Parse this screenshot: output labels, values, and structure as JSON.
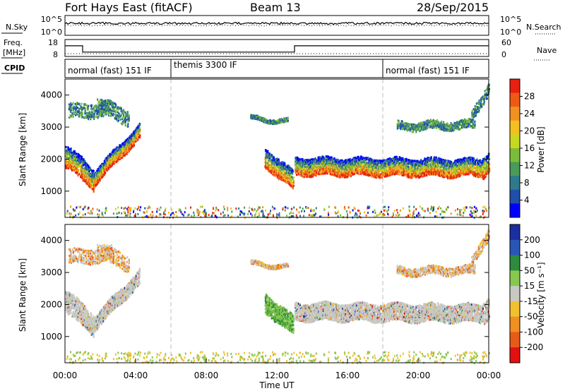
{
  "header": {
    "station": "Fort Hays East (fitACF)",
    "beam": "Beam 13",
    "date": "28/Sep/2015"
  },
  "noise_panel": {
    "left_label": "N.Sky",
    "left_ticks": [
      "10^5",
      "10^0"
    ],
    "right_ticks": [
      "10^5",
      "10^0"
    ],
    "right_label": "N.Search"
  },
  "freq_panel": {
    "left_label_1": "Freq.",
    "left_label_2": "[MHz]",
    "left_ticks": [
      "18",
      "8"
    ],
    "right_ticks": [
      "60",
      "0"
    ],
    "right_label": "Nave",
    "freq_levels_mhz": [
      {
        "from": 0,
        "to": 1,
        "value": 14.3
      },
      {
        "from": 1,
        "to": 13,
        "value": 10.6
      },
      {
        "from": 13,
        "to": 24,
        "value": 14.3
      }
    ],
    "nave_level": 10
  },
  "cpid": {
    "label": "CPID",
    "segments": [
      {
        "from": 0,
        "to": 6,
        "name": "normal (fast) 151 IF"
      },
      {
        "from": 6,
        "to": 18,
        "name": "themis 3300 IF"
      },
      {
        "from": 18,
        "to": 24,
        "name": "normal (fast) 151 IF"
      }
    ]
  },
  "power_panel": {
    "ylabel": "Slant Range [km]",
    "yticks": [
      "4000",
      "3000",
      "2000",
      "1000"
    ],
    "colorbar_label": "Power [dB]",
    "colorbar_ticks": [
      "28",
      "24",
      "20",
      "16",
      "12",
      "8",
      "4"
    ],
    "colors": [
      "#0000ff",
      "#1f4fa8",
      "#2e7a8c",
      "#4a9a5a",
      "#7cbc3a",
      "#c8d820",
      "#f4c020",
      "#f29020",
      "#ee5a14",
      "#e82010"
    ]
  },
  "velocity_panel": {
    "ylabel": "Slant Range [km]",
    "yticks": [
      "4000",
      "3000",
      "2000",
      "1000"
    ],
    "colorbar_label": "Velocity [m s⁻¹]",
    "colorbar_ticks": [
      "200",
      "100",
      "50",
      "15",
      "-15",
      "-50",
      "-100",
      "-200"
    ],
    "colors": [
      "#1a2fa0",
      "#2a56b8",
      "#2e8a3c",
      "#86c850",
      "#c8c8c4",
      "#f0c030",
      "#f09020",
      "#e85a18",
      "#e21010"
    ]
  },
  "x_axis": {
    "ticks": [
      "00:00",
      "04:00",
      "08:00",
      "12:00",
      "16:00",
      "20:00",
      "00:00"
    ],
    "xlabel": "Time UT"
  },
  "chart_data": {
    "type": "heatmap",
    "title": "Fort Hays East (fitACF)",
    "subtitle": "Beam 13",
    "date": "28/Sep/2015",
    "xlabel": "Time UT",
    "ylabel": "Slant Range [km]",
    "x_range_hours": [
      0,
      24
    ],
    "y_range_km": [
      180,
      4500
    ],
    "vertical_markers_hours": [
      6,
      18
    ],
    "power_echo_bands": [
      {
        "from": 0.0,
        "to": 1.0,
        "start_km": 2100,
        "end_km": 1700,
        "width_km": 700
      },
      {
        "from": 1.0,
        "to": 1.6,
        "start_km": 1700,
        "end_km": 1400,
        "width_km": 650
      },
      {
        "from": 1.6,
        "to": 4.2,
        "start_km": 1400,
        "end_km": 2900,
        "width_km": 450
      },
      {
        "from": 11.3,
        "to": 12.9,
        "start_km": 2100,
        "end_km": 1350,
        "width_km": 600
      },
      {
        "from": 13.0,
        "to": 23.6,
        "start_km": 1800,
        "end_km": 1750,
        "width_km": 550
      },
      {
        "from": 23.6,
        "to": 24.0,
        "start_km": 1750,
        "end_km": 1950,
        "width_km": 650
      }
    ],
    "upper_echo_bands": [
      {
        "from": 0.2,
        "to": 2.6,
        "start_km": 3500,
        "end_km": 3600,
        "width_km": 450
      },
      {
        "from": 1.8,
        "to": 3.6,
        "start_km": 3700,
        "end_km": 3300,
        "width_km": 500
      },
      {
        "from": 10.5,
        "to": 12.6,
        "start_km": 3300,
        "end_km": 3200,
        "width_km": 120
      },
      {
        "from": 18.8,
        "to": 23.2,
        "start_km": 3050,
        "end_km": 3100,
        "width_km": 260
      },
      {
        "from": 23.0,
        "to": 24.0,
        "start_km": 3300,
        "end_km": 4300,
        "width_km": 350
      }
    ],
    "velocity_features": [
      {
        "from": 11.4,
        "to": 12.9,
        "velocity_ms": 50
      },
      {
        "from": 13.0,
        "to": 23.8,
        "velocity_ms": 0
      },
      {
        "from": 0.0,
        "to": 4.2,
        "velocity_ms": 0
      }
    ]
  }
}
